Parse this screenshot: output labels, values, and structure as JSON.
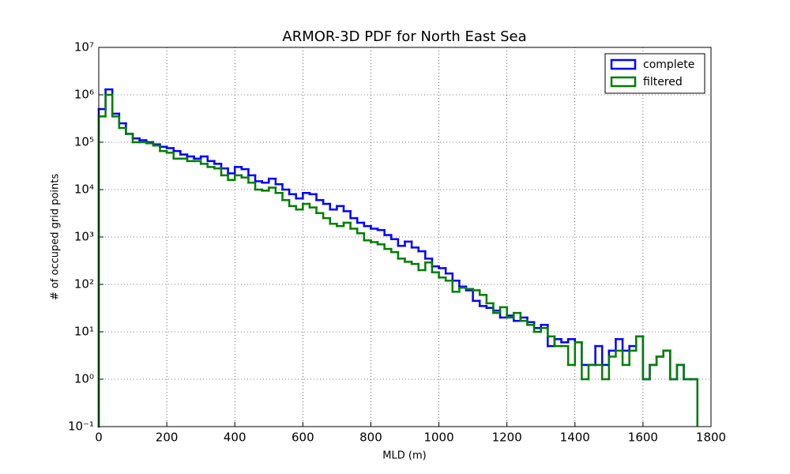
{
  "chart_data": {
    "type": "step-histogram",
    "title": "ARMOR-3D PDF for North East Sea",
    "x_label": "MLD (m)",
    "y_label": "# of occuped grid points",
    "log_y": true,
    "grid": true,
    "legend": "upper right",
    "xlim": [
      0,
      1800
    ],
    "ylim": [
      0.1,
      10000000
    ],
    "xticks": [
      0,
      200,
      400,
      600,
      800,
      1000,
      1200,
      1400,
      1600,
      1800
    ],
    "yticks": [
      {
        "value": 0.1,
        "label": "10⁻¹"
      },
      {
        "value": 1,
        "label": "10⁰"
      },
      {
        "value": 10,
        "label": "10¹"
      },
      {
        "value": 100,
        "label": "10²"
      },
      {
        "value": 1000,
        "label": "10³"
      },
      {
        "value": 10000,
        "label": "10⁴"
      },
      {
        "value": 100000,
        "label": "10⁵"
      },
      {
        "value": 1000000,
        "label": "10⁶"
      },
      {
        "value": 10000000,
        "label": "10⁷"
      }
    ],
    "bins": [
      0,
      20,
      40,
      60,
      80,
      100,
      120,
      140,
      160,
      180,
      200,
      220,
      240,
      260,
      280,
      300,
      320,
      340,
      360,
      380,
      400,
      420,
      440,
      460,
      480,
      500,
      520,
      540,
      560,
      580,
      600,
      620,
      640,
      660,
      680,
      700,
      720,
      740,
      760,
      780,
      800,
      820,
      840,
      860,
      880,
      900,
      920,
      940,
      960,
      980,
      1000,
      1020,
      1040,
      1060,
      1080,
      1100,
      1120,
      1140,
      1160,
      1180,
      1200,
      1220,
      1240,
      1260,
      1280,
      1300,
      1320,
      1340,
      1360,
      1380,
      1400,
      1420,
      1440,
      1460,
      1480,
      1500,
      1520,
      1540,
      1560,
      1580,
      1600,
      1620,
      1640,
      1660,
      1680,
      1700,
      1720,
      1740,
      1760
    ],
    "series": [
      {
        "name": "complete",
        "color": "#0000ff",
        "values": [
          500000,
          1300000,
          400000,
          250000,
          150000,
          120000,
          110000,
          100000,
          90000,
          80000,
          75000,
          65000,
          55000,
          50000,
          45000,
          50000,
          40000,
          35000,
          28000,
          22000,
          30000,
          27000,
          20000,
          15000,
          14000,
          17000,
          13000,
          10000,
          8000,
          6500,
          8500,
          8000,
          6000,
          5000,
          3800,
          4500,
          3500,
          2500,
          2000,
          1700,
          1500,
          1400,
          1100,
          900,
          650,
          800,
          600,
          500,
          350,
          240,
          220,
          170,
          120,
          90,
          75,
          45,
          35,
          32,
          28,
          20,
          22,
          17,
          20,
          16,
          12,
          14,
          5,
          7,
          6,
          7,
          6,
          2,
          2,
          5,
          2,
          4,
          7,
          4,
          5,
          8,
          1,
          2,
          3,
          4,
          1,
          2,
          1,
          1
        ]
      },
      {
        "name": "filtered",
        "color": "#007f00",
        "values": [
          350000,
          1000000,
          350000,
          200000,
          150000,
          100000,
          100000,
          95000,
          85000,
          65000,
          60000,
          45000,
          45000,
          40000,
          40000,
          35000,
          30000,
          28000,
          20000,
          16000,
          20000,
          18000,
          14000,
          10000,
          9500,
          11000,
          8500,
          6000,
          4500,
          3800,
          5000,
          4200,
          3200,
          2500,
          1900,
          1700,
          2000,
          1500,
          1200,
          850,
          780,
          700,
          560,
          480,
          350,
          300,
          270,
          200,
          290,
          180,
          140,
          120,
          70,
          85,
          80,
          75,
          60,
          40,
          25,
          33,
          20,
          25,
          17,
          14,
          10,
          12,
          8,
          5,
          5,
          2,
          6,
          1,
          2,
          2,
          1,
          3,
          4,
          2,
          4,
          8,
          1,
          2,
          3,
          4,
          1,
          2,
          1,
          1
        ]
      }
    ]
  }
}
